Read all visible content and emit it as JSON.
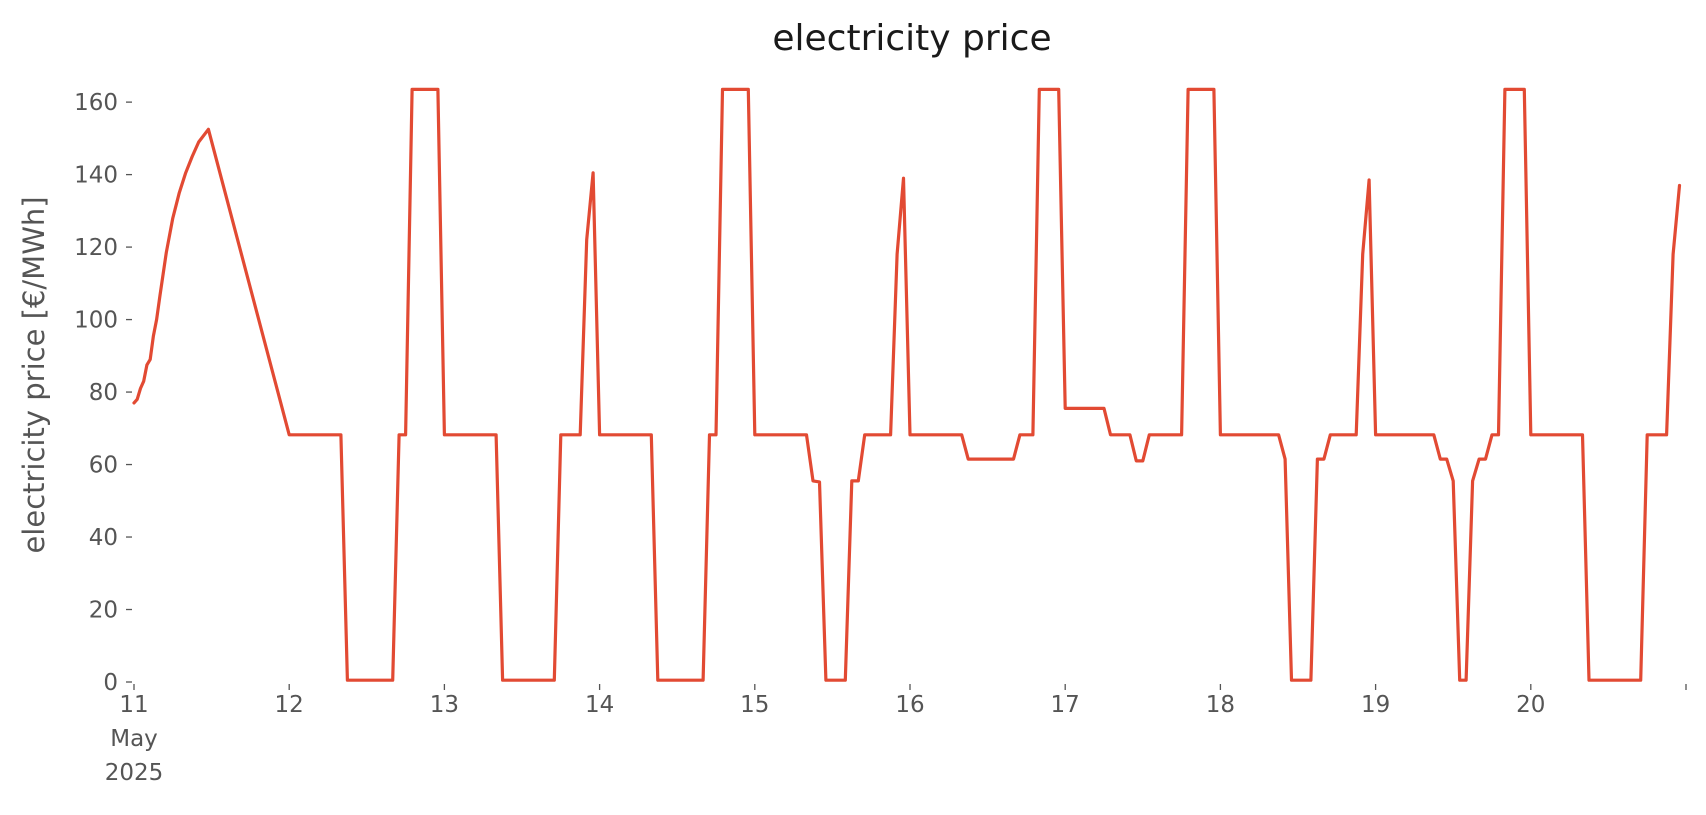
{
  "chart_data": {
    "type": "line",
    "title": "electricity price",
    "xlabel": "",
    "ylabel": "electricity price [€/MWh]",
    "ylim": [
      0,
      165
    ],
    "xlim": [
      "2025-05-11T00:00",
      "2025-05-20T23:59"
    ],
    "grid": false,
    "legend": "none",
    "yticks": [
      0,
      20,
      40,
      60,
      80,
      100,
      120,
      140,
      160
    ],
    "xticks": [
      {
        "x": "2025-05-11T00:00",
        "label": [
          "11",
          "May",
          "2025"
        ]
      },
      {
        "x": "2025-05-12T00:00",
        "label": [
          "12"
        ]
      },
      {
        "x": "2025-05-13T00:00",
        "label": [
          "13"
        ]
      },
      {
        "x": "2025-05-14T00:00",
        "label": [
          "14"
        ]
      },
      {
        "x": "2025-05-15T00:00",
        "label": [
          "15"
        ]
      },
      {
        "x": "2025-05-16T00:00",
        "label": [
          "16"
        ]
      },
      {
        "x": "2025-05-17T00:00",
        "label": [
          "17"
        ]
      },
      {
        "x": "2025-05-18T00:00",
        "label": [
          "18"
        ]
      },
      {
        "x": "2025-05-19T00:00",
        "label": [
          "19"
        ]
      },
      {
        "x": "2025-05-20T00:00",
        "label": [
          "20"
        ]
      },
      {
        "x": "2025-05-21T00:00",
        "label": [
          ""
        ]
      }
    ],
    "color": "#e24a33",
    "series": [
      {
        "name": "",
        "points": [
          [
            "2025-05-11T00:00",
            77
          ],
          [
            "2025-05-11T00:30",
            78
          ],
          [
            "2025-05-11T01:00",
            81
          ],
          [
            "2025-05-11T01:30",
            83
          ],
          [
            "2025-05-11T02:00",
            87.5
          ],
          [
            "2025-05-11T02:30",
            89
          ],
          [
            "2025-05-11T03:00",
            95.5
          ],
          [
            "2025-05-11T03:30",
            100
          ],
          [
            "2025-05-11T04:00",
            106.5
          ],
          [
            "2025-05-11T05:00",
            118.5
          ],
          [
            "2025-05-11T06:00",
            128
          ],
          [
            "2025-05-11T07:00",
            135
          ],
          [
            "2025-05-11T08:00",
            140.5
          ],
          [
            "2025-05-11T09:00",
            145
          ],
          [
            "2025-05-11T10:00",
            149
          ],
          [
            "2025-05-11T11:30",
            152.5
          ],
          [
            "2025-05-12T00:00",
            68.2
          ],
          [
            "2025-05-12T08:00",
            68.2
          ],
          [
            "2025-05-12T09:00",
            0.5
          ],
          [
            "2025-05-12T16:00",
            0.5
          ],
          [
            "2025-05-12T17:00",
            68.2
          ],
          [
            "2025-05-12T18:00",
            68.2
          ],
          [
            "2025-05-12T19:00",
            163.5
          ],
          [
            "2025-05-12T23:00",
            163.5
          ],
          [
            "2025-05-13T00:00",
            68.2
          ],
          [
            "2025-05-13T08:00",
            68.2
          ],
          [
            "2025-05-13T09:00",
            0.5
          ],
          [
            "2025-05-13T17:00",
            0.5
          ],
          [
            "2025-05-13T18:00",
            68.2
          ],
          [
            "2025-05-13T21:00",
            68.2
          ],
          [
            "2025-05-13T22:00",
            122
          ],
          [
            "2025-05-13T23:00",
            140.5
          ],
          [
            "2025-05-14T00:00",
            68.2
          ],
          [
            "2025-05-14T08:00",
            68.2
          ],
          [
            "2025-05-14T09:00",
            0.5
          ],
          [
            "2025-05-14T16:00",
            0.5
          ],
          [
            "2025-05-14T17:00",
            68.2
          ],
          [
            "2025-05-14T18:00",
            68.2
          ],
          [
            "2025-05-14T19:00",
            163.5
          ],
          [
            "2025-05-14T23:00",
            163.5
          ],
          [
            "2025-05-15T00:00",
            68.2
          ],
          [
            "2025-05-15T08:00",
            68.2
          ],
          [
            "2025-05-15T09:00",
            55.5
          ],
          [
            "2025-05-15T10:00",
            55.2
          ],
          [
            "2025-05-15T11:00",
            0.5
          ],
          [
            "2025-05-15T14:00",
            0.5
          ],
          [
            "2025-05-15T15:00",
            55.5
          ],
          [
            "2025-05-15T16:00",
            55.5
          ],
          [
            "2025-05-15T17:00",
            68.2
          ],
          [
            "2025-05-15T21:00",
            68.2
          ],
          [
            "2025-05-15T22:00",
            118
          ],
          [
            "2025-05-15T23:00",
            139
          ],
          [
            "2025-05-16T00:00",
            68.2
          ],
          [
            "2025-05-16T08:00",
            68.2
          ],
          [
            "2025-05-16T09:00",
            61.5
          ],
          [
            "2025-05-16T16:00",
            61.5
          ],
          [
            "2025-05-16T17:00",
            68.2
          ],
          [
            "2025-05-16T19:00",
            68.2
          ],
          [
            "2025-05-16T20:00",
            163.5
          ],
          [
            "2025-05-16T23:00",
            163.5
          ],
          [
            "2025-05-17T00:00",
            75.5
          ],
          [
            "2025-05-17T06:00",
            75.5
          ],
          [
            "2025-05-17T07:00",
            68.2
          ],
          [
            "2025-05-17T10:00",
            68.2
          ],
          [
            "2025-05-17T11:00",
            61
          ],
          [
            "2025-05-17T12:00",
            61
          ],
          [
            "2025-05-17T13:00",
            68.2
          ],
          [
            "2025-05-17T18:00",
            68.2
          ],
          [
            "2025-05-17T19:00",
            163.5
          ],
          [
            "2025-05-17T23:00",
            163.5
          ],
          [
            "2025-05-18T00:00",
            68.2
          ],
          [
            "2025-05-18T09:00",
            68.2
          ],
          [
            "2025-05-18T10:00",
            61.5
          ],
          [
            "2025-05-18T11:00",
            0.5
          ],
          [
            "2025-05-18T14:00",
            0.5
          ],
          [
            "2025-05-18T15:00",
            61.5
          ],
          [
            "2025-05-18T16:00",
            61.5
          ],
          [
            "2025-05-18T17:00",
            68.2
          ],
          [
            "2025-05-18T21:00",
            68.2
          ],
          [
            "2025-05-18T22:00",
            118
          ],
          [
            "2025-05-18T23:00",
            138.5
          ],
          [
            "2025-05-19T00:00",
            68.2
          ],
          [
            "2025-05-19T09:00",
            68.2
          ],
          [
            "2025-05-19T10:00",
            61.5
          ],
          [
            "2025-05-19T11:00",
            61.5
          ],
          [
            "2025-05-19T12:00",
            55.5
          ],
          [
            "2025-05-19T13:00",
            0.5
          ],
          [
            "2025-05-19T14:00",
            0.5
          ],
          [
            "2025-05-19T15:00",
            55.5
          ],
          [
            "2025-05-19T16:00",
            61.5
          ],
          [
            "2025-05-19T17:00",
            61.5
          ],
          [
            "2025-05-19T18:00",
            68.2
          ],
          [
            "2025-05-19T19:00",
            68.2
          ],
          [
            "2025-05-19T20:00",
            163.5
          ],
          [
            "2025-05-19T23:00",
            163.5
          ],
          [
            "2025-05-20T00:00",
            68.2
          ],
          [
            "2025-05-20T08:00",
            68.2
          ],
          [
            "2025-05-20T09:00",
            0.5
          ],
          [
            "2025-05-20T17:00",
            0.5
          ],
          [
            "2025-05-20T18:00",
            68.2
          ],
          [
            "2025-05-20T21:00",
            68.2
          ],
          [
            "2025-05-20T22:00",
            118
          ],
          [
            "2025-05-20T23:00",
            137
          ]
        ]
      }
    ]
  }
}
